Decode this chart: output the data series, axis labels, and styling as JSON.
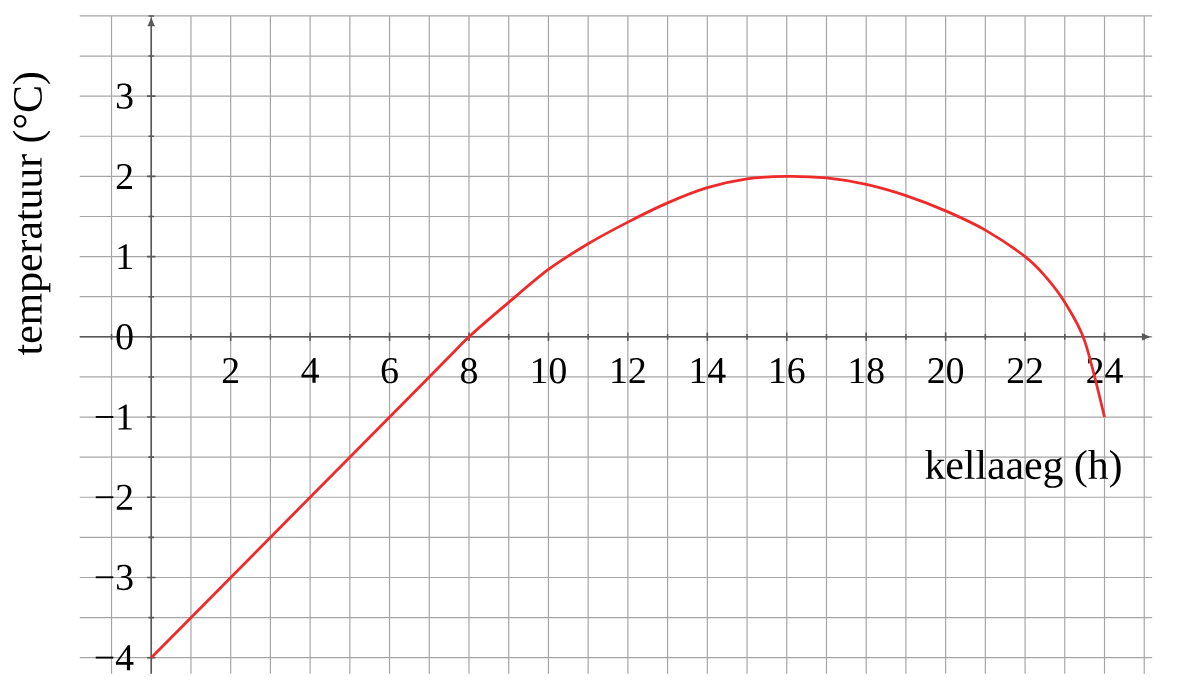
{
  "chart_data": {
    "type": "line",
    "xlabel": "kellaaeg (h)",
    "ylabel": "temperatuur (°C)",
    "x": [
      0,
      7,
      8,
      9,
      10,
      11,
      12,
      13,
      14,
      15,
      16,
      17,
      18,
      19,
      20,
      21,
      22,
      22.5,
      23,
      23.5,
      24
    ],
    "values": [
      -4,
      -0.5,
      0,
      0.43,
      0.84,
      1.16,
      1.43,
      1.67,
      1.86,
      1.97,
      2.0,
      1.98,
      1.9,
      1.76,
      1.57,
      1.33,
      1.0,
      0.76,
      0.43,
      -0.05,
      -1
    ],
    "color": "#ee2a2a",
    "xlim": [
      -1.8,
      25.2
    ],
    "ylim": [
      -4.2,
      4.0
    ],
    "xticks": [
      2,
      4,
      6,
      8,
      10,
      12,
      14,
      16,
      18,
      20,
      22,
      24
    ],
    "yticks": [
      {
        "value": -4,
        "label": "−4"
      },
      {
        "value": -3,
        "label": "−3"
      },
      {
        "value": -2,
        "label": "−2"
      },
      {
        "value": -1,
        "label": "−1"
      },
      0,
      1,
      2,
      3
    ],
    "grid": true
  }
}
